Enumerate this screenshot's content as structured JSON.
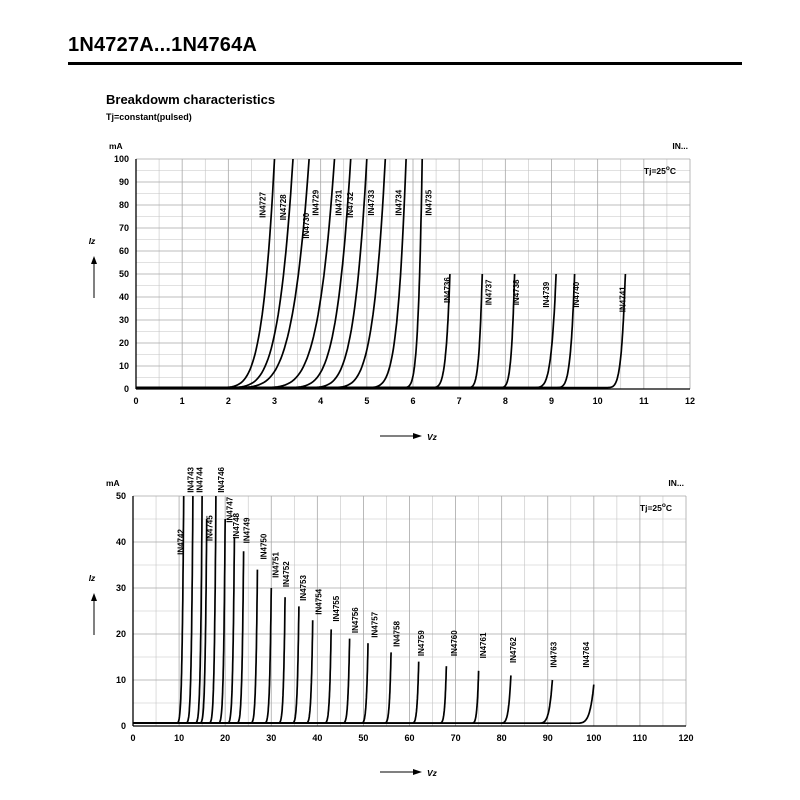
{
  "header": {
    "title": "1N4727A...1N4764A",
    "section_title": "Breakdowm characteristics",
    "section_subtitle": "Tj=constant(pulsed)"
  },
  "chart_data": [
    {
      "type": "line",
      "xlabel": "Vz",
      "ylabel": "Iz",
      "yunit": "mA",
      "corner_label": "IN...",
      "temperature_note": "Tj=25°C",
      "xlim": [
        0,
        12
      ],
      "ylim": [
        0,
        100
      ],
      "x_ticks": [
        0,
        1,
        2,
        3,
        4,
        5,
        6,
        7,
        8,
        9,
        10,
        11,
        12
      ],
      "y_ticks": [
        0,
        10,
        20,
        30,
        40,
        50,
        60,
        70,
        80,
        90,
        100
      ],
      "grid": true,
      "series": [
        {
          "name": "IN4727",
          "knee": 1.5,
          "vz": 3.0,
          "imax": 100,
          "label_v": 2.8,
          "label_i": 80
        },
        {
          "name": "IN4728",
          "knee": 1.6,
          "vz": 3.4,
          "imax": 100,
          "label_v": 3.25,
          "label_i": 79
        },
        {
          "name": "IN4729",
          "knee": 1.7,
          "vz": 3.75,
          "imax": 100,
          "label_v": 3.95,
          "label_i": 81
        },
        {
          "name": "IN4730",
          "knee": 2.3,
          "vz": 4.3,
          "imax": 100,
          "label_v": 3.75,
          "label_i": 71
        },
        {
          "name": "IN4731",
          "knee": 2.9,
          "vz": 4.65,
          "imax": 100,
          "label_v": 4.45,
          "label_i": 81
        },
        {
          "name": "IN4732",
          "knee": 3.4,
          "vz": 5.0,
          "imax": 100,
          "label_v": 4.7,
          "label_i": 80
        },
        {
          "name": "IN4733",
          "knee": 3.9,
          "vz": 5.4,
          "imax": 100,
          "label_v": 5.15,
          "label_i": 81
        },
        {
          "name": "IN4734",
          "knee": 4.8,
          "vz": 5.85,
          "imax": 100,
          "label_v": 5.75,
          "label_i": 81
        },
        {
          "name": "IN4735",
          "knee": 5.7,
          "vz": 6.2,
          "imax": 100,
          "label_v": 6.4,
          "label_i": 81
        },
        {
          "name": "IN4736",
          "knee": 6.3,
          "vz": 6.8,
          "imax": 50,
          "label_v": 6.8,
          "label_i": 43
        },
        {
          "name": "IN4737",
          "knee": 7.1,
          "vz": 7.5,
          "imax": 50,
          "label_v": 7.7,
          "label_i": 42
        },
        {
          "name": "IN4738",
          "knee": 7.8,
          "vz": 8.2,
          "imax": 50,
          "label_v": 8.3,
          "label_i": 42
        },
        {
          "name": "IN4739",
          "knee": 8.5,
          "vz": 9.1,
          "imax": 50,
          "label_v": 8.95,
          "label_i": 41
        },
        {
          "name": "IN4740",
          "knee": 9.0,
          "vz": 9.5,
          "imax": 50,
          "label_v": 9.6,
          "label_i": 41
        },
        {
          "name": "IN4741",
          "knee": 10.1,
          "vz": 10.6,
          "imax": 50,
          "label_v": 10.6,
          "label_i": 39
        }
      ]
    },
    {
      "type": "line",
      "xlabel": "Vz",
      "ylabel": "Iz",
      "yunit": "mA",
      "corner_label": "IN...",
      "temperature_note": "Tj=25°C",
      "xlim": [
        0,
        120
      ],
      "ylim": [
        0,
        50
      ],
      "x_ticks": [
        0,
        10,
        20,
        30,
        40,
        50,
        60,
        70,
        80,
        90,
        100,
        110,
        120
      ],
      "y_ticks": [
        0,
        10,
        20,
        30,
        40,
        50
      ],
      "grid": true,
      "series": [
        {
          "name": "IN4742",
          "knee": 9.0,
          "vz": 11.0,
          "imax": 50,
          "label_v": 11.0,
          "label_i": 40
        },
        {
          "name": "IN4743",
          "knee": 11.0,
          "vz": 13.0,
          "imax": 50,
          "label_v": 13.1,
          "label_i": 53.5
        },
        {
          "name": "IN4744",
          "knee": 13.0,
          "vz": 15.0,
          "imax": 50,
          "label_v": 15.1,
          "label_i": 53.5
        },
        {
          "name": "IN4745",
          "knee": 14.0,
          "vz": 16.0,
          "imax": 45,
          "label_v": 17.2,
          "label_i": 43
        },
        {
          "name": "IN4746",
          "knee": 16.0,
          "vz": 18.0,
          "imax": 50,
          "label_v": 19.7,
          "label_i": 53.5
        },
        {
          "name": "IN4747",
          "knee": 18.0,
          "vz": 20.0,
          "imax": 45,
          "label_v": 21.6,
          "label_i": 47
        },
        {
          "name": "IN4748",
          "knee": 20.0,
          "vz": 22.0,
          "imax": 41,
          "label_v": 23.0,
          "label_i": 43.5
        },
        {
          "name": "IN4749",
          "knee": 22.0,
          "vz": 24.0,
          "imax": 38,
          "label_v": 25.3,
          "label_i": 42.5
        },
        {
          "name": "IN4750",
          "knee": 25.0,
          "vz": 27.0,
          "imax": 34,
          "label_v": 29.0,
          "label_i": 39
        },
        {
          "name": "IN4751",
          "knee": 28.0,
          "vz": 30.0,
          "imax": 30,
          "label_v": 31.6,
          "label_i": 35
        },
        {
          "name": "IN4752",
          "knee": 31.0,
          "vz": 33.0,
          "imax": 28,
          "label_v": 33.8,
          "label_i": 33
        },
        {
          "name": "IN4753",
          "knee": 34.0,
          "vz": 36.0,
          "imax": 26,
          "label_v": 37.5,
          "label_i": 30
        },
        {
          "name": "IN4754",
          "knee": 37.0,
          "vz": 39.0,
          "imax": 23,
          "label_v": 40.9,
          "label_i": 27
        },
        {
          "name": "IN4755",
          "knee": 41.0,
          "vz": 43.0,
          "imax": 21,
          "label_v": 44.7,
          "label_i": 25.5
        },
        {
          "name": "IN4756",
          "knee": 45.0,
          "vz": 47.0,
          "imax": 19,
          "label_v": 48.8,
          "label_i": 23
        },
        {
          "name": "IN4757",
          "knee": 49.0,
          "vz": 51.0,
          "imax": 18,
          "label_v": 53.1,
          "label_i": 22
        },
        {
          "name": "IN4758",
          "knee": 54.0,
          "vz": 56.0,
          "imax": 16,
          "label_v": 57.8,
          "label_i": 20
        },
        {
          "name": "IN4759",
          "knee": 60.0,
          "vz": 62.0,
          "imax": 14,
          "label_v": 63.1,
          "label_i": 18
        },
        {
          "name": "IN4760",
          "knee": 66.0,
          "vz": 68.0,
          "imax": 13,
          "label_v": 70.3,
          "label_i": 18
        },
        {
          "name": "IN4761",
          "knee": 73.0,
          "vz": 75.0,
          "imax": 12,
          "label_v": 76.6,
          "label_i": 17.5
        },
        {
          "name": "IN4762",
          "knee": 79.0,
          "vz": 82.0,
          "imax": 11,
          "label_v": 83.1,
          "label_i": 16.5
        },
        {
          "name": "IN4763",
          "knee": 87.0,
          "vz": 91.0,
          "imax": 10,
          "label_v": 91.9,
          "label_i": 15.5
        },
        {
          "name": "IN4764",
          "knee": 95.0,
          "vz": 100.0,
          "imax": 9,
          "label_v": 99.0,
          "label_i": 15.5
        }
      ]
    }
  ]
}
